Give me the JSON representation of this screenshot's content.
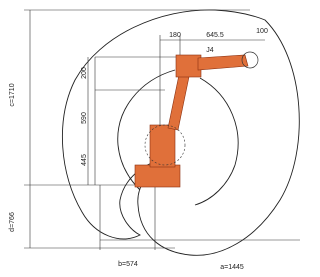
{
  "dimensions": {
    "top_left": "180",
    "top_mid": "645.5",
    "top_right": "100",
    "upper": "200",
    "middle": "590",
    "lower": "445",
    "c": "c=1710",
    "d": "d=766",
    "b": "b=574",
    "a": "a=1445"
  },
  "joint_label": "J4"
}
